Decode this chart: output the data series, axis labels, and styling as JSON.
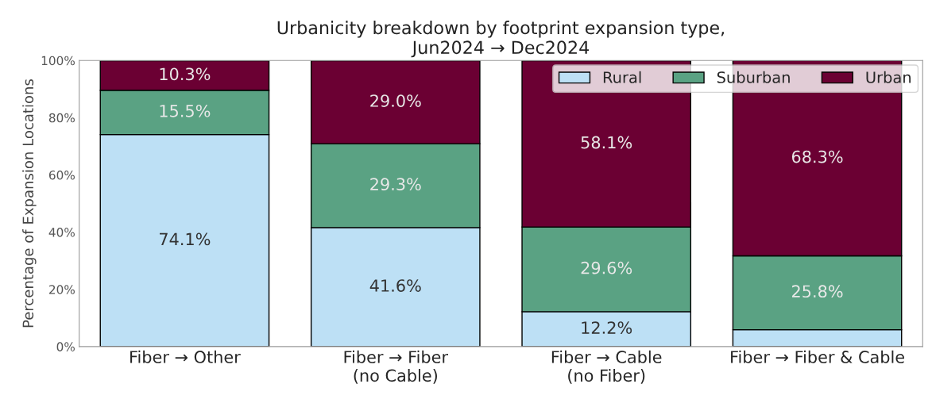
{
  "chart_data": {
    "type": "bar",
    "title": "Urbanicity breakdown by footprint expansion type,\nJun2024 → Dec2024",
    "ylabel": "Percentage of Expansion Locations",
    "categories": [
      "Fiber → Other",
      "Fiber → Fiber\n(no Cable)",
      "Fiber → Cable\n(no Fiber)",
      "Fiber → Fiber & Cable"
    ],
    "stacked": true,
    "series": [
      {
        "name": "Rural",
        "color": "#bde0f5",
        "values": [
          74.1,
          41.6,
          12.2,
          5.9
        ],
        "value_labels": [
          "74.1%",
          "41.6%",
          "12.2%",
          null
        ]
      },
      {
        "name": "Suburban",
        "color": "#5aa283",
        "values": [
          15.5,
          29.3,
          29.6,
          25.8
        ],
        "value_labels": [
          "15.5%",
          "29.3%",
          "29.6%",
          "25.8%"
        ]
      },
      {
        "name": "Urban",
        "color": "#6b0033",
        "values": [
          10.3,
          29.0,
          58.1,
          68.3
        ],
        "value_labels": [
          "10.3%",
          "29.0%",
          "58.1%",
          "68.3%"
        ]
      }
    ],
    "ylim": [
      0,
      100
    ],
    "yticks": [
      {
        "value": 0,
        "label": "0%"
      },
      {
        "value": 20,
        "label": "20%"
      },
      {
        "value": 40,
        "label": "40%"
      },
      {
        "value": 60,
        "label": "60%"
      },
      {
        "value": 80,
        "label": "80%"
      },
      {
        "value": 100,
        "label": "100%"
      }
    ],
    "legend": "top right",
    "grid": false
  }
}
